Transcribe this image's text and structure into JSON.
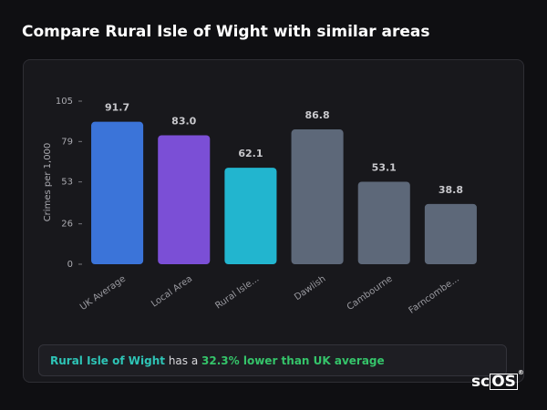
{
  "title": "Compare Rural Isle of Wight with similar areas",
  "chart_data": {
    "type": "bar",
    "y_label": "Crimes per 1,000",
    "categories": [
      "UK Average",
      "Local Area",
      "Rural Isle...",
      "Dawlish",
      "Cambourne",
      "Farncombe..."
    ],
    "values": [
      91.7,
      83.0,
      62.1,
      86.8,
      53.1,
      38.8
    ],
    "value_labels": [
      "91.7",
      "83.0",
      "62.1",
      "86.8",
      "53.1",
      "38.8"
    ],
    "colors": [
      "#3b74d9",
      "#7b4fd6",
      "#22b5cf",
      "#5d6879",
      "#5d6879",
      "#5d6879"
    ],
    "ylim": [
      0,
      105
    ],
    "yticks": [
      0,
      26,
      53,
      79,
      105
    ]
  },
  "note": {
    "place": "Rural Isle of Wight",
    "middle": "has a",
    "highlight": "32.3% lower than UK average"
  },
  "logo": {
    "text": "sc",
    "boxed": "OS",
    "mark": "®"
  }
}
